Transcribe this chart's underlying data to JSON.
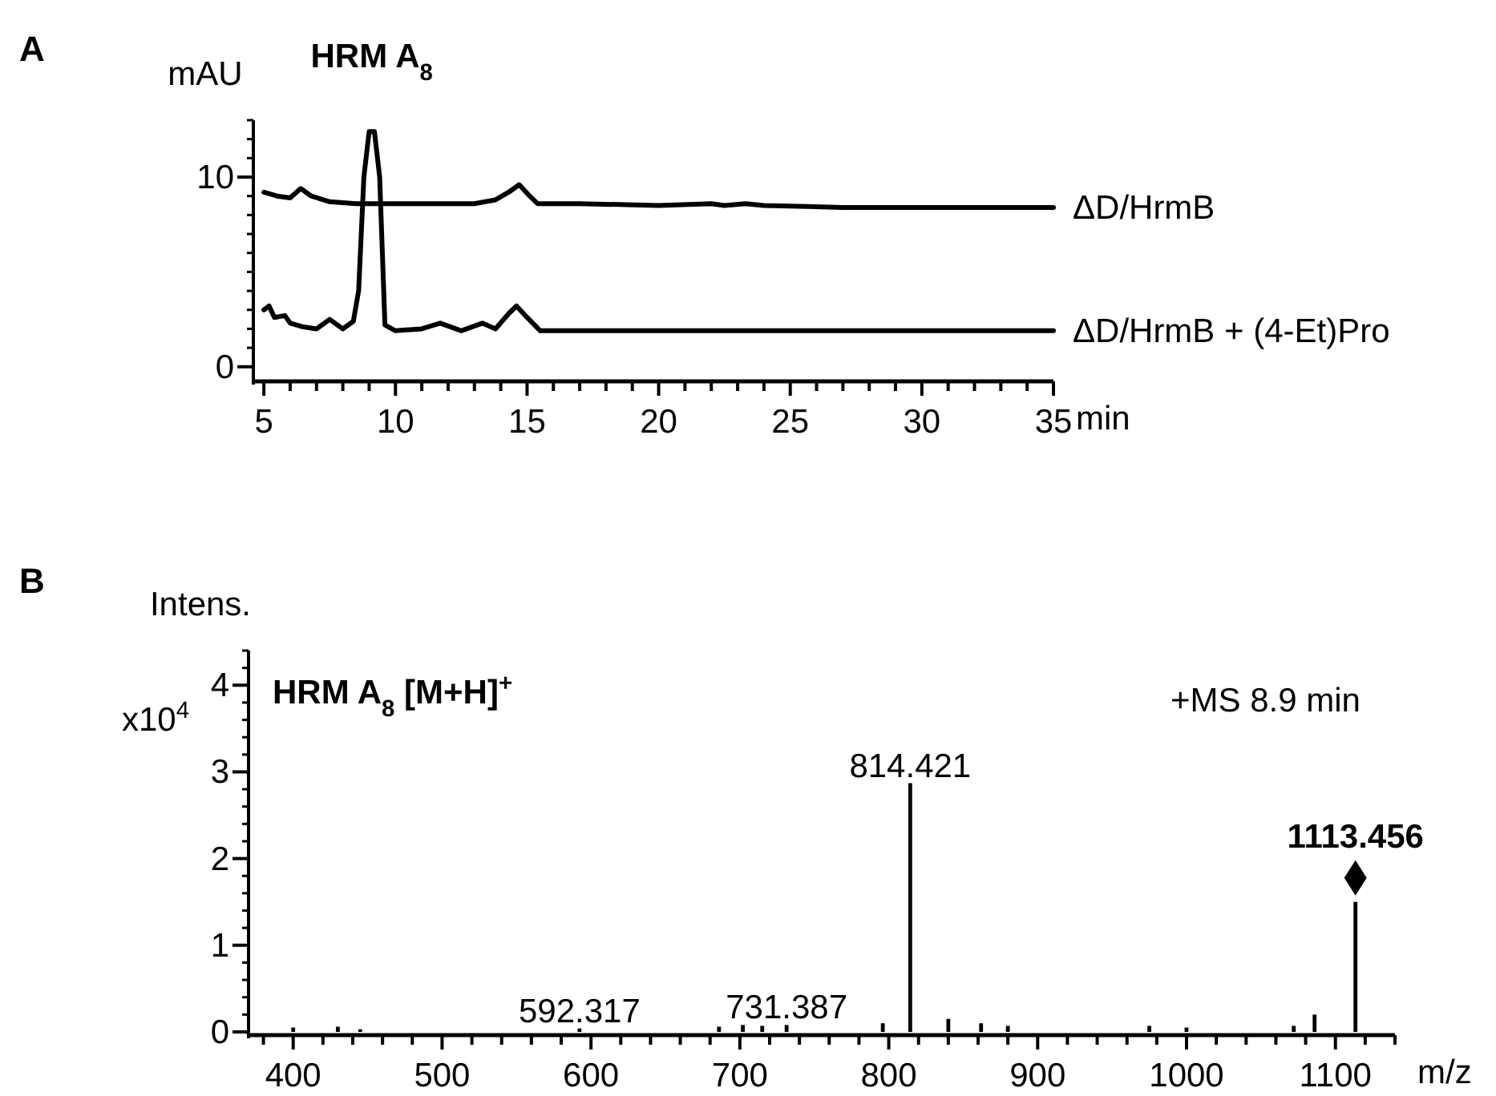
{
  "chart_data": [
    {
      "type": "line",
      "title": "A",
      "ylabel": "mAU",
      "xlabel": "min",
      "xlim": [
        4.6,
        35
      ],
      "ylim": [
        -0.6,
        13
      ],
      "xticks": [
        5,
        {
          "value": 6,
          "label": null
        },
        {
          "value": 7,
          "label": null
        },
        {
          "value": 8,
          "label": null
        },
        {
          "value": 9,
          "label": null
        },
        10,
        {
          "value": 11,
          "label": null
        },
        {
          "value": 12,
          "label": null
        },
        {
          "value": 13,
          "label": null
        },
        {
          "value": 14,
          "label": null
        },
        15,
        {
          "value": 16,
          "label": null
        },
        {
          "value": 17,
          "label": null
        },
        {
          "value": 18,
          "label": null
        },
        {
          "value": 19,
          "label": null
        },
        20,
        {
          "value": 21,
          "label": null
        },
        {
          "value": 22,
          "label": null
        },
        {
          "value": 23,
          "label": null
        },
        {
          "value": 24,
          "label": null
        },
        25,
        {
          "value": 26,
          "label": null
        },
        {
          "value": 27,
          "label": null
        },
        {
          "value": 28,
          "label": null
        },
        {
          "value": 29,
          "label": null
        },
        30,
        {
          "value": 31,
          "label": null
        },
        {
          "value": 32,
          "label": null
        },
        {
          "value": 33,
          "label": null
        },
        {
          "value": 34,
          "label": null
        },
        35
      ],
      "yticks": [
        0,
        {
          "value": 1,
          "label": null
        },
        {
          "value": 2,
          "label": null
        },
        {
          "value": 3,
          "label": null
        },
        {
          "value": 4,
          "label": null
        },
        {
          "value": 5,
          "label": null
        },
        {
          "value": 6,
          "label": null
        },
        {
          "value": 7,
          "label": null
        },
        {
          "value": 8,
          "label": null
        },
        {
          "value": 9,
          "label": null
        },
        10,
        {
          "value": 11,
          "label": null
        },
        {
          "value": 12,
          "label": null
        },
        {
          "value": 13,
          "label": null
        }
      ],
      "annotations": [
        {
          "text": "HRM A$_{8}$",
          "x": 9.1,
          "y": 12.4
        }
      ],
      "series": [
        {
          "name": "ΔD/HrmB",
          "color": "#000000",
          "x": [
            5,
            5.5,
            6,
            6.4,
            6.8,
            7.5,
            8.5,
            10,
            11,
            12,
            13,
            13.8,
            14.3,
            14.7,
            15.1,
            15.4,
            17,
            20,
            22,
            22.5,
            23.3,
            24,
            27,
            30,
            32,
            35
          ],
          "values": [
            9.2,
            9.0,
            8.9,
            9.4,
            9.0,
            8.7,
            8.6,
            8.6,
            8.6,
            8.6,
            8.6,
            8.8,
            9.2,
            9.6,
            9.0,
            8.6,
            8.6,
            8.5,
            8.6,
            8.5,
            8.6,
            8.5,
            8.4,
            8.4,
            8.4,
            8.4
          ]
        },
        {
          "name": "ΔD/HrmB + (4-Et)Pro",
          "color": "#000000",
          "x": [
            5,
            5.2,
            5.4,
            5.8,
            6,
            6.5,
            7,
            7.5,
            8,
            8.4,
            8.6,
            8.8,
            9,
            9.2,
            9.4,
            9.6,
            10,
            11,
            11.7,
            12.5,
            13.3,
            13.8,
            14.3,
            14.6,
            15,
            15.5,
            20,
            25,
            30,
            35
          ],
          "values": [
            3.0,
            3.2,
            2.6,
            2.7,
            2.3,
            2.1,
            2.0,
            2.5,
            2.0,
            2.4,
            4,
            10,
            12.4,
            12.4,
            10,
            2.2,
            1.9,
            2.0,
            2.3,
            1.9,
            2.3,
            2.0,
            2.8,
            3.2,
            2.6,
            1.9,
            1.9,
            1.9,
            1.9,
            1.9
          ]
        }
      ]
    },
    {
      "type": "bar",
      "title": "B",
      "ylabel": "Intens.",
      "y2label": "x10$^{4}$",
      "xlabel": "m/z",
      "xlim": [
        370,
        1140
      ],
      "ylim": [
        0,
        4.4
      ],
      "xticks": [
        {
          "value": 380,
          "label": null
        },
        400,
        {
          "value": 420,
          "label": null
        },
        {
          "value": 440,
          "label": null
        },
        {
          "value": 460,
          "label": null
        },
        {
          "value": 480,
          "label": null
        },
        500,
        {
          "value": 520,
          "label": null
        },
        {
          "value": 540,
          "label": null
        },
        {
          "value": 560,
          "label": null
        },
        {
          "value": 580,
          "label": null
        },
        600,
        {
          "value": 620,
          "label": null
        },
        {
          "value": 640,
          "label": null
        },
        {
          "value": 660,
          "label": null
        },
        {
          "value": 680,
          "label": null
        },
        700,
        {
          "value": 720,
          "label": null
        },
        {
          "value": 740,
          "label": null
        },
        {
          "value": 760,
          "label": null
        },
        {
          "value": 780,
          "label": null
        },
        800,
        {
          "value": 820,
          "label": null
        },
        {
          "value": 840,
          "label": null
        },
        {
          "value": 860,
          "label": null
        },
        {
          "value": 880,
          "label": null
        },
        900,
        {
          "value": 920,
          "label": null
        },
        {
          "value": 940,
          "label": null
        },
        {
          "value": 960,
          "label": null
        },
        {
          "value": 980,
          "label": null
        },
        1000,
        {
          "value": 1020,
          "label": null
        },
        {
          "value": 1040,
          "label": null
        },
        {
          "value": 1060,
          "label": null
        },
        {
          "value": 1080,
          "label": null
        },
        1100,
        {
          "value": 1120,
          "label": null
        },
        {
          "value": 1140,
          "label": null
        }
      ],
      "yticks": [
        0,
        {
          "value": 0.2,
          "label": null
        },
        {
          "value": 0.4,
          "label": null
        },
        {
          "value": 0.6,
          "label": null
        },
        {
          "value": 0.8,
          "label": null
        },
        1,
        {
          "value": 1.2,
          "label": null
        },
        {
          "value": 1.4,
          "label": null
        },
        {
          "value": 1.6,
          "label": null
        },
        {
          "value": 1.8,
          "label": null
        },
        2,
        {
          "value": 2.2,
          "label": null
        },
        {
          "value": 2.4,
          "label": null
        },
        {
          "value": 2.6,
          "label": null
        },
        {
          "value": 2.8,
          "label": null
        },
        3,
        {
          "value": 3.2,
          "label": null
        },
        {
          "value": 3.4,
          "label": null
        },
        {
          "value": 3.6,
          "label": null
        },
        {
          "value": 3.8,
          "label": null
        },
        4,
        {
          "value": 4.2,
          "label": null
        },
        {
          "value": 4.4,
          "label": null
        }
      ],
      "annotations": [
        "HRM A$_{8}$ [M+H]$^{+}$",
        "+MS 8.9 min",
        {
          "text": "592.317",
          "x": 592.317,
          "y": 0.04
        },
        {
          "text": "731.387",
          "x": 731.387,
          "y": 0.08
        },
        {
          "text": "814.421",
          "x": 814.421,
          "y": 2.87
        },
        {
          "text": "1113.456",
          "x": 1113.456,
          "y": 1.5
        }
      ],
      "series": [
        {
          "color": "#000000",
          "x": [
            400,
            430,
            445,
            592.317,
            686,
            702,
            715,
            731.387,
            796,
            814.421,
            840,
            862,
            880,
            975,
            1000,
            1072,
            1086,
            1113.456
          ],
          "values": [
            0.05,
            0.06,
            0.03,
            0.04,
            0.06,
            0.08,
            0.07,
            0.08,
            0.1,
            2.87,
            0.15,
            0.1,
            0.07,
            0.07,
            0.05,
            0.07,
            0.2,
            1.5
          ]
        }
      ]
    }
  ]
}
